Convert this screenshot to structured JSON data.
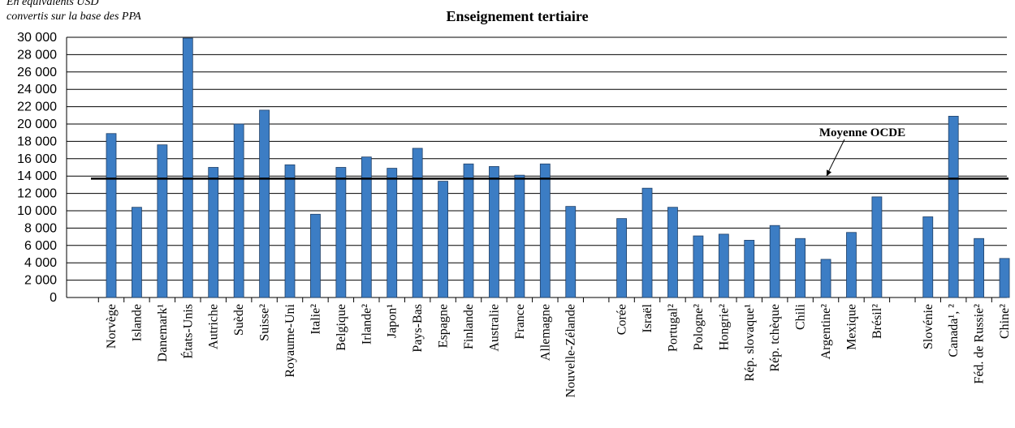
{
  "chart_data": {
    "type": "bar",
    "title": "Enseignement tertiaire",
    "y_axis_label": "En équivalents USD convertis sur la base des PPA",
    "color": "#3c7dc4",
    "categories": [
      "Norvège",
      "Islande",
      "Danemark¹",
      "États-Unis",
      "Autriche",
      "Suède",
      "Suisse²",
      "Royaume-Uni",
      "Italie²",
      "Belgique",
      "Irlande²",
      "Japon¹",
      "Pays-Bas",
      "Espagne",
      "Finlande",
      "Australie",
      "France",
      "Allemagne",
      "Nouvelle-Zélande",
      null,
      "Corée",
      "Israël",
      "Portugal²",
      "Pologne²",
      "Hongrie²",
      "Rép. slovaque¹",
      "Rép. tchèque",
      "Chili",
      "Argentine²",
      "Mexique",
      "Brésil²",
      null,
      "Slovénie",
      "Canada¹, ²",
      "Féd. de Russie²",
      "Chine²"
    ],
    "values": [
      18900,
      10400,
      17600,
      29900,
      15000,
      20000,
      21600,
      15300,
      9600,
      15000,
      16200,
      14900,
      17200,
      13400,
      15400,
      15100,
      14100,
      15400,
      10500,
      null,
      9100,
      12600,
      10400,
      7100,
      7300,
      6600,
      8300,
      6800,
      4400,
      7500,
      11600,
      null,
      9300,
      20900,
      6800,
      4500
    ],
    "reference_line": {
      "label": "Moyenne OCDE",
      "value": 13700
    },
    "ylim": [
      0,
      30000
    ],
    "yticks": [
      0,
      {
        "value": 2000,
        "label": "2 000"
      },
      {
        "value": 4000,
        "label": "4 000"
      },
      {
        "value": 6000,
        "label": "6 000"
      },
      {
        "value": 8000,
        "label": "8 000"
      },
      {
        "value": 10000,
        "label": "10 000"
      },
      {
        "value": 12000,
        "label": "12 000"
      },
      {
        "value": 14000,
        "label": "14 000"
      },
      {
        "value": 16000,
        "label": "16 000"
      },
      {
        "value": 18000,
        "label": "18 000"
      },
      {
        "value": 20000,
        "label": "20 000"
      },
      {
        "value": 22000,
        "label": "22 000"
      },
      {
        "value": 24000,
        "label": "24 000"
      },
      {
        "value": 26000,
        "label": "26 000"
      },
      {
        "value": 28000,
        "label": "28 000"
      },
      {
        "value": 30000,
        "label": "30 000"
      }
    ],
    "grid": true
  }
}
